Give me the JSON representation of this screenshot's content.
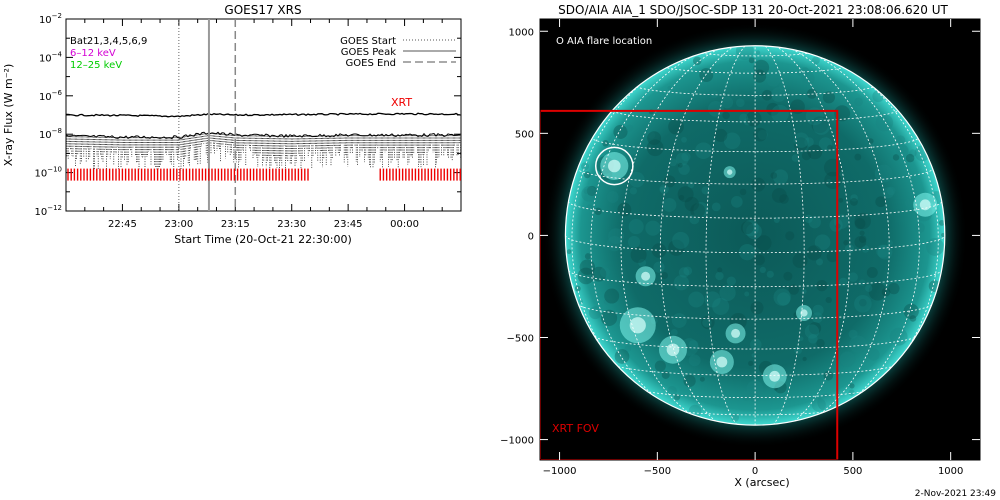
{
  "chart_data": [
    {
      "type": "line",
      "title": "GOES17 XRS",
      "xlabel": "Start Time (20-Oct-21 22:30:00)",
      "ylabel": "X-ray Flux (W m⁻²)",
      "y_scale": "log",
      "ylim": [
        1e-12,
        0.01
      ],
      "y_ticks": [
        {
          "value": 0.01,
          "base": "10",
          "exp": "−2"
        },
        {
          "value": 0.0001,
          "base": "10",
          "exp": "−4"
        },
        {
          "value": 1e-06,
          "base": "10",
          "exp": "−6"
        },
        {
          "value": 1e-08,
          "base": "10",
          "exp": "−8"
        },
        {
          "value": 1e-10,
          "base": "10",
          "exp": "−10"
        },
        {
          "value": 1e-12,
          "base": "10",
          "exp": "−12"
        }
      ],
      "x_range": [
        "22:30",
        "00:15"
      ],
      "x_ticks": [
        "22:45",
        "23:00",
        "23:15",
        "23:30",
        "23:45",
        "00:00"
      ],
      "legend_left": [
        {
          "label": "Bat21,3,4,5,6,9",
          "color": "#000000"
        },
        {
          "label": "6–12 keV",
          "color": "#d400d4"
        },
        {
          "label": "12–25 keV",
          "color": "#00cc00"
        }
      ],
      "legend_right": [
        {
          "label": "GOES Start",
          "style": "dotted"
        },
        {
          "label": "GOES Peak",
          "style": "solid"
        },
        {
          "label": "GOES End",
          "style": "dashed"
        }
      ],
      "markers": {
        "start": "23:00",
        "peak": "23:08",
        "end": "23:15"
      },
      "xrt_label": "XRT",
      "xrt_color": "#ee0000",
      "xrt_coverage": [
        [
          "22:30",
          "23:35"
        ],
        [
          "23:53",
          "00:15"
        ]
      ],
      "series": [
        {
          "name": "6–12 keV",
          "x": [
            "22:30",
            "22:45",
            "23:00",
            "23:08",
            "23:15",
            "23:30",
            "23:45",
            "00:00",
            "00:15"
          ],
          "values": [
            1e-07,
            9.5e-08,
            8.5e-08,
            1.1e-07,
            1e-07,
            1.05e-07,
            1.1e-07,
            1.15e-07,
            1.1e-07
          ]
        },
        {
          "name": "12–25 keV",
          "x": [
            "22:30",
            "22:45",
            "23:00",
            "23:08",
            "23:15",
            "23:30",
            "23:45",
            "00:00",
            "00:15"
          ],
          "values": [
            8e-09,
            7e-09,
            7e-09,
            1.2e-08,
            9e-09,
            8e-09,
            9e-09,
            9e-09,
            9e-09
          ]
        }
      ]
    },
    {
      "type": "scatter",
      "title": "SDO/AIA AIA_1 SDO/JSOC-SDP 131 20-Oct-2021 23:08:06.620 UT",
      "xlabel": "X (arcsec)",
      "ylabel": "",
      "xlim": [
        -1100,
        1150
      ],
      "ylim": [
        -1100,
        1060
      ],
      "x_ticks": [
        -1000,
        -500,
        0,
        500,
        1000
      ],
      "y_ticks": [
        -1000,
        -500,
        0,
        500,
        1000
      ],
      "legend_text": "O AIA flare location",
      "flare_location": {
        "x": -720,
        "y": 340,
        "radius": 95
      },
      "xrt_fov": {
        "label": "XRT FOV",
        "x": [
          -1100,
          420
        ],
        "y": [
          -1100,
          610
        ],
        "color": "#dd0000"
      },
      "solar_radius_arcsec": 970,
      "disk_color": "#0f6e6a",
      "limb_color": "#5ff2e8"
    }
  ],
  "footer": {
    "timestamp": "2-Nov-2021 23:49"
  }
}
